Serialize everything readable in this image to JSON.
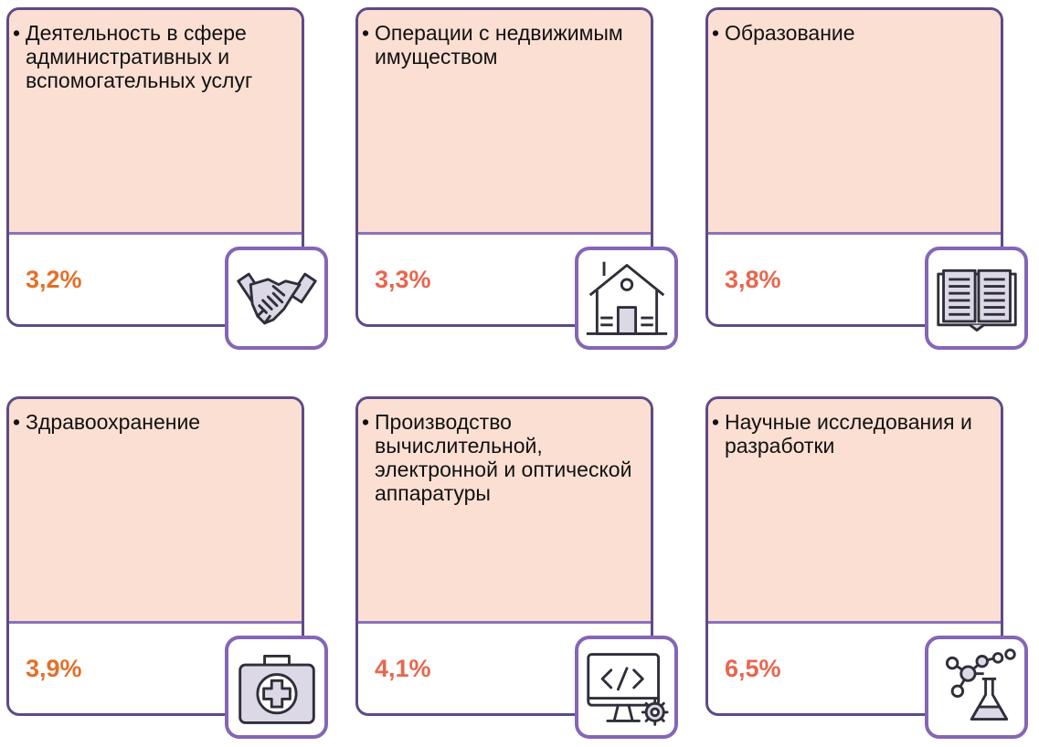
{
  "cards": [
    {
      "title": "Деятельность в сфере административных и вспомогательных услуг",
      "value": "3,2%",
      "icon": "handshake-icon"
    },
    {
      "title": "Операции с недвижимым имуществом",
      "value": "3,3%",
      "icon": "house-icon"
    },
    {
      "title": "Образование",
      "value": "3,8%",
      "icon": "open-book-icon"
    },
    {
      "title": "Здравоохранение",
      "value": "3,9%",
      "icon": "first-aid-kit-icon"
    },
    {
      "title": "Производство вычислительной, электронной и оптической аппаратуры",
      "value": "4,1%",
      "icon": "computer-code-icon"
    },
    {
      "title": "Научные исследования и разработки",
      "value": "6,5%",
      "icon": "molecule-flask-icon"
    }
  ],
  "colors": {
    "card_fill": "#fbdfd3",
    "card_border": "#5e4a86",
    "icon_border": "#8466b7",
    "value_red": "#e8664f",
    "value_orange": "#e2702a",
    "icon_fill": "#ddd8e6",
    "icon_stroke": "#2f2f3a"
  }
}
